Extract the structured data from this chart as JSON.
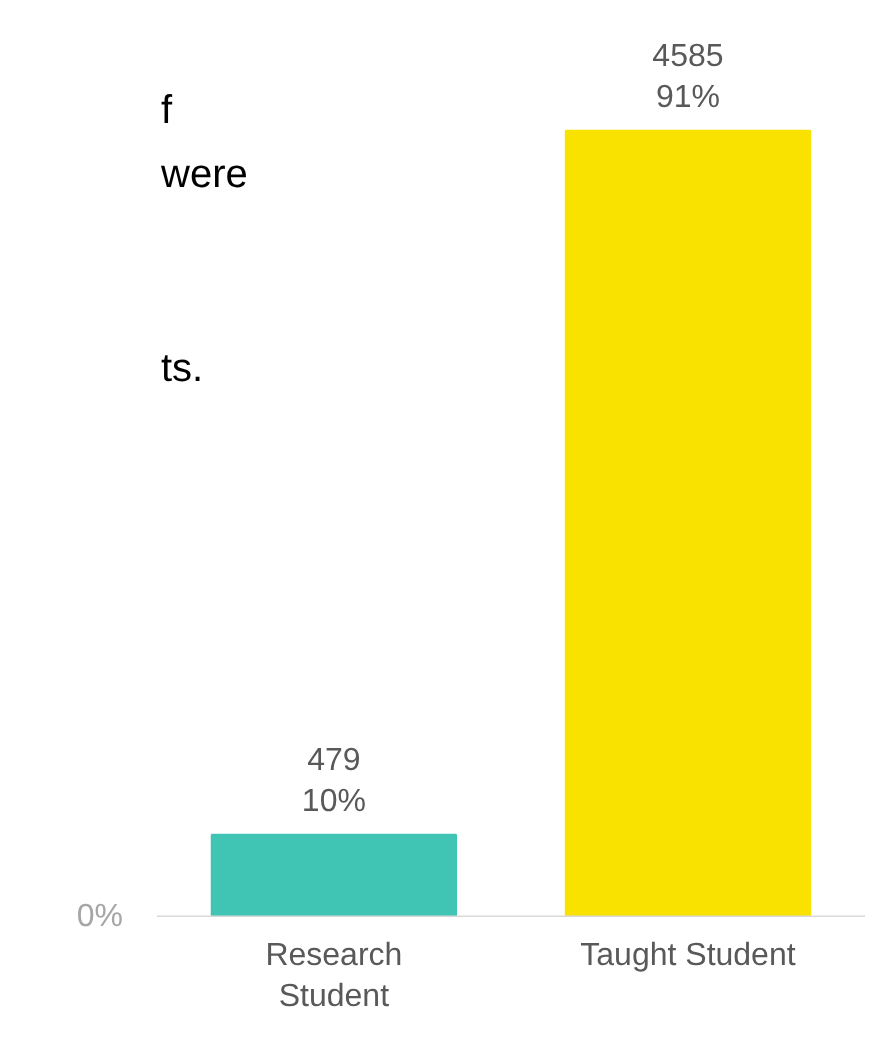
{
  "chart_data": {
    "type": "bar",
    "categories": [
      "Research Student",
      "Taught Student"
    ],
    "values": [
      479,
      4585
    ],
    "colors": [
      "#40c4b4",
      "#f9e200"
    ],
    "value_labels": [
      "479\n10%",
      "4585\n91%"
    ],
    "grid": false,
    "annotations": [
      "f",
      "were",
      "ts.",
      "0%"
    ]
  }
}
